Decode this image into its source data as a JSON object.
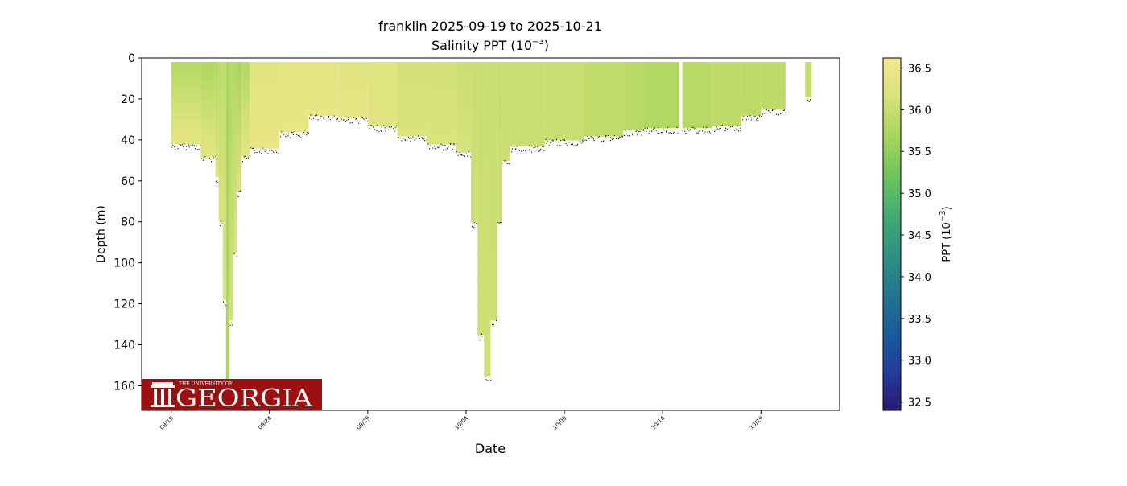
{
  "chart_data": {
    "type": "scatter",
    "title_line1": "franklin 2025-09-19 to 2025-10-21",
    "title_line2_prefix": "Salinity PPT (10",
    "title_line2_exp": "−3",
    "title_line2_suffix": ")",
    "xlabel": "Date",
    "ylabel": "Depth (m)",
    "x_range": [
      "2025-09-17T12:00",
      "2025-10-23T00:00"
    ],
    "y_range": [
      172,
      0
    ],
    "y_inverted": true,
    "y_ticks": [
      0,
      20,
      40,
      60,
      80,
      100,
      120,
      140,
      160
    ],
    "x_ticks": [
      {
        "date": "2025-09-19",
        "label": "09/19"
      },
      {
        "date": "2025-09-24",
        "label": "09/24"
      },
      {
        "date": "2025-09-29",
        "label": "09/29"
      },
      {
        "date": "2025-10-04",
        "label": "10/04"
      },
      {
        "date": "2025-10-09",
        "label": "10/09"
      },
      {
        "date": "2025-10-14",
        "label": "10/14"
      },
      {
        "date": "2025-10-19",
        "label": "10/19"
      }
    ],
    "colorbar": {
      "label_prefix": "PPT (10",
      "label_exp": "−3",
      "label_suffix": ")",
      "range": [
        32.4,
        36.62
      ],
      "ticks": [
        "32.5",
        "33.0",
        "33.5",
        "34.0",
        "34.5",
        "35.0",
        "35.5",
        "36.0",
        "36.5"
      ],
      "colormap": "haline",
      "stops": [
        "#2a1a6e",
        "#233c9e",
        "#1a5c9a",
        "#23768f",
        "#2f9184",
        "#44ab74",
        "#6fc45d",
        "#a6d55a",
        "#d7e27a",
        "#f7e98f"
      ]
    },
    "profiles": [
      {
        "start": "2025-09-19T00:00",
        "end": "2025-09-20T12:00",
        "bottom_depth": 42,
        "surface_salinity": 35.8,
        "deep_salinity": 36.35
      },
      {
        "start": "2025-09-20T12:00",
        "end": "2025-09-21T06:00",
        "bottom_depth": 48,
        "surface_salinity": 35.75,
        "deep_salinity": 36.3
      },
      {
        "start": "2025-09-21T06:00",
        "end": "2025-09-21T10:00",
        "bottom_depth": 58,
        "surface_salinity": 35.8,
        "deep_salinity": 36.2
      },
      {
        "start": "2025-09-21T10:00",
        "end": "2025-09-21T15:00",
        "bottom_depth": 80,
        "surface_salinity": 35.9,
        "deep_salinity": 36.2
      },
      {
        "start": "2025-09-21T15:00",
        "end": "2025-09-21T19:00",
        "bottom_depth": 118,
        "surface_salinity": 35.9,
        "deep_salinity": 36.25
      },
      {
        "start": "2025-09-21T19:00",
        "end": "2025-09-21T23:00",
        "bottom_depth": 158,
        "surface_salinity": 35.7,
        "deep_salinity": 35.75
      },
      {
        "start": "2025-09-21T23:00",
        "end": "2025-09-22T03:00",
        "bottom_depth": 128,
        "surface_salinity": 35.8,
        "deep_salinity": 36.1
      },
      {
        "start": "2025-09-22T03:00",
        "end": "2025-09-22T08:00",
        "bottom_depth": 95,
        "surface_salinity": 35.8,
        "deep_salinity": 36.2
      },
      {
        "start": "2025-09-22T08:00",
        "end": "2025-09-22T14:00",
        "bottom_depth": 65,
        "surface_salinity": 35.7,
        "deep_salinity": 36.2
      },
      {
        "start": "2025-09-22T14:00",
        "end": "2025-09-23T00:00",
        "bottom_depth": 48,
        "surface_salinity": 35.8,
        "deep_salinity": 36.3
      },
      {
        "start": "2025-09-23T00:00",
        "end": "2025-09-24T12:00",
        "bottom_depth": 44,
        "surface_salinity": 36.3,
        "deep_salinity": 36.4
      },
      {
        "start": "2025-09-24T12:00",
        "end": "2025-09-26T00:00",
        "bottom_depth": 36,
        "surface_salinity": 36.35,
        "deep_salinity": 36.4
      },
      {
        "start": "2025-09-26T00:00",
        "end": "2025-09-27T12:00",
        "bottom_depth": 28,
        "surface_salinity": 36.35,
        "deep_salinity": 36.4
      },
      {
        "start": "2025-09-27T12:00",
        "end": "2025-09-29T00:00",
        "bottom_depth": 29,
        "surface_salinity": 36.3,
        "deep_salinity": 36.35
      },
      {
        "start": "2025-09-29T00:00",
        "end": "2025-09-30T12:00",
        "bottom_depth": 33,
        "surface_salinity": 36.25,
        "deep_salinity": 36.3
      },
      {
        "start": "2025-09-30T12:00",
        "end": "2025-10-02T00:00",
        "bottom_depth": 38,
        "surface_salinity": 36.1,
        "deep_salinity": 36.2
      },
      {
        "start": "2025-10-02T00:00",
        "end": "2025-10-03T12:00",
        "bottom_depth": 42,
        "surface_salinity": 36.1,
        "deep_salinity": 36.2
      },
      {
        "start": "2025-10-03T12:00",
        "end": "2025-10-04T06:00",
        "bottom_depth": 46,
        "surface_salinity": 36.05,
        "deep_salinity": 36.15
      },
      {
        "start": "2025-10-04T06:00",
        "end": "2025-10-04T14:00",
        "bottom_depth": 80,
        "surface_salinity": 36.0,
        "deep_salinity": 36.1
      },
      {
        "start": "2025-10-04T14:00",
        "end": "2025-10-04T22:00",
        "bottom_depth": 135,
        "surface_salinity": 36.0,
        "deep_salinity": 36.05
      },
      {
        "start": "2025-10-04T22:00",
        "end": "2025-10-05T06:00",
        "bottom_depth": 155,
        "surface_salinity": 36.0,
        "deep_salinity": 36.1
      },
      {
        "start": "2025-10-05T06:00",
        "end": "2025-10-05T14:00",
        "bottom_depth": 128,
        "surface_salinity": 36.0,
        "deep_salinity": 36.05
      },
      {
        "start": "2025-10-05T14:00",
        "end": "2025-10-05T20:00",
        "bottom_depth": 80,
        "surface_salinity": 36.0,
        "deep_salinity": 36.05
      },
      {
        "start": "2025-10-05T20:00",
        "end": "2025-10-06T06:00",
        "bottom_depth": 50,
        "surface_salinity": 36.0,
        "deep_salinity": 36.05
      },
      {
        "start": "2025-10-06T06:00",
        "end": "2025-10-08T00:00",
        "bottom_depth": 43,
        "surface_salinity": 36.0,
        "deep_salinity": 36.0
      },
      {
        "start": "2025-10-08T00:00",
        "end": "2025-10-10T00:00",
        "bottom_depth": 40,
        "surface_salinity": 36.0,
        "deep_salinity": 36.0
      },
      {
        "start": "2025-10-10T00:00",
        "end": "2025-10-12T00:00",
        "bottom_depth": 38,
        "surface_salinity": 35.95,
        "deep_salinity": 35.95
      },
      {
        "start": "2025-10-12T00:00",
        "end": "2025-10-13T00:00",
        "bottom_depth": 35,
        "surface_salinity": 35.85,
        "deep_salinity": 35.85
      },
      {
        "start": "2025-10-13T00:00",
        "end": "2025-10-14T20:00",
        "bottom_depth": 34,
        "surface_salinity": 35.8,
        "deep_salinity": 35.8
      },
      {
        "start": "2025-10-15T00:00",
        "end": "2025-10-16T12:00",
        "bottom_depth": 34,
        "surface_salinity": 35.85,
        "deep_salinity": 35.85
      },
      {
        "start": "2025-10-16T12:00",
        "end": "2025-10-18T00:00",
        "bottom_depth": 33,
        "surface_salinity": 35.9,
        "deep_salinity": 35.9
      },
      {
        "start": "2025-10-18T00:00",
        "end": "2025-10-19T00:00",
        "bottom_depth": 28,
        "surface_salinity": 35.9,
        "deep_salinity": 35.9
      },
      {
        "start": "2025-10-19T00:00",
        "end": "2025-10-20T06:00",
        "bottom_depth": 25,
        "surface_salinity": 35.9,
        "deep_salinity": 35.9
      },
      {
        "start": "2025-10-21T06:00",
        "end": "2025-10-21T14:00",
        "bottom_depth": 19,
        "surface_salinity": 35.95,
        "deep_salinity": 35.95
      }
    ],
    "grid": false,
    "legend": "colorbar-right"
  },
  "logo": {
    "small_text": "THE UNIVERSITY OF",
    "big_text": "GEORGIA"
  },
  "colors": {
    "logo_red": "#9b1010",
    "bottom_dots": "#000000"
  }
}
